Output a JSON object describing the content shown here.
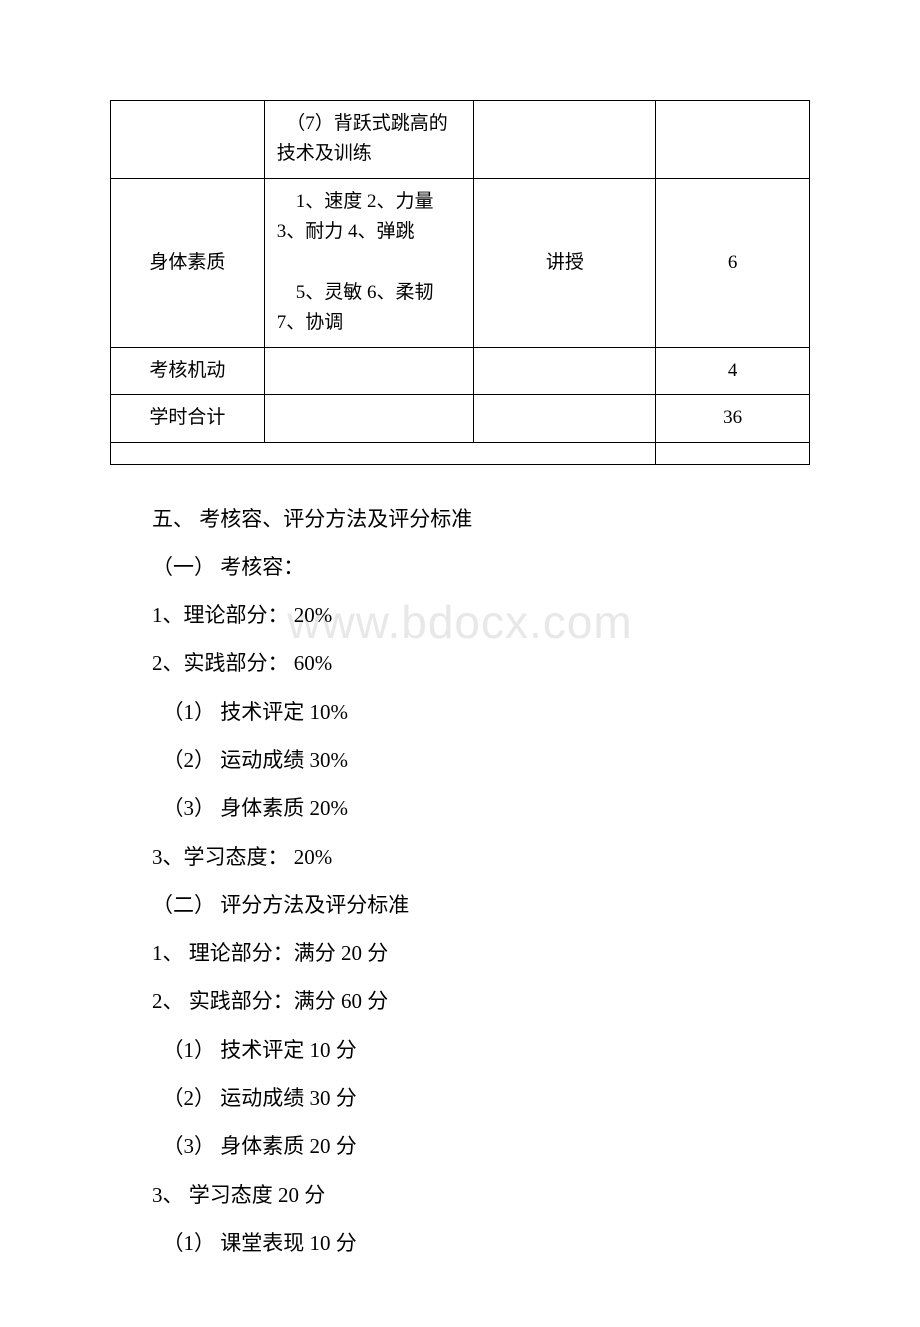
{
  "watermark": "www.bdocx.com",
  "table": {
    "rows": [
      {
        "c1": "",
        "c2": "　（7）背跃式跳高的技术及训练",
        "c3": "",
        "c4": ""
      },
      {
        "c1": "身体素质",
        "c2": "　1、速度 2、力量 3、耐力 4、弹跳\n　5、灵敏  6、柔韧 7、协调",
        "c3": "讲授",
        "c4": "6"
      },
      {
        "c1": "考核机动",
        "c2": "",
        "c3": "",
        "c4": "4"
      },
      {
        "c1": "学时合计",
        "c2": "",
        "c3": "",
        "c4": "36"
      },
      {
        "c1": "",
        "c2": "",
        "c3": "",
        "c4": ""
      }
    ],
    "merged_last_span": 3
  },
  "lines": [
    {
      "cls": "indent1",
      "text": "五、 考核容、评分方法及评分标准"
    },
    {
      "cls": "indent1",
      "text": "（一） 考核容："
    },
    {
      "cls": "indent1",
      "text": "1、理论部分：  20%"
    },
    {
      "cls": "indent1",
      "text": "2、实践部分：  60%"
    },
    {
      "cls": "indent3",
      "text": "（1） 技术评定  10%"
    },
    {
      "cls": "indent3",
      "text": "（2） 运动成绩  30%"
    },
    {
      "cls": "indent3",
      "text": "（3） 身体素质  20%"
    },
    {
      "cls": "indent1",
      "text": "3、学习态度：  20%"
    },
    {
      "cls": "indent2",
      "text": "（二） 评分方法及评分标准"
    },
    {
      "cls": "indent1",
      "text": "1、 理论部分：满分 20 分"
    },
    {
      "cls": "indent1",
      "text": "2、 实践部分：满分 60 分"
    },
    {
      "cls": "indent3",
      "text": "（1） 技术评定 10 分"
    },
    {
      "cls": "indent3",
      "text": "（2） 运动成绩 30 分"
    },
    {
      "cls": "indent3",
      "text": "（3） 身体素质 20 分"
    },
    {
      "cls": "indent1",
      "text": "3、 学习态度 20 分"
    },
    {
      "cls": "indent3",
      "text": "（1） 课堂表现 10 分"
    }
  ]
}
